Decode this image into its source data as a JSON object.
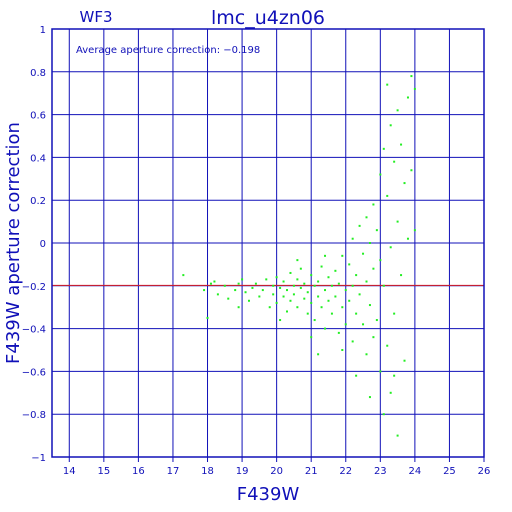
{
  "chart_data": {
    "type": "scatter",
    "panel_label": "WF3",
    "title": "lmc_u4zn06",
    "annotation": "Average aperture correction: −0.198",
    "xlabel": "F439W",
    "ylabel": "F439W aperture correction",
    "xlim": [
      13.5,
      26
    ],
    "ylim": [
      -1,
      1
    ],
    "x_ticks": [
      14,
      15,
      16,
      17,
      18,
      19,
      20,
      21,
      22,
      23,
      24,
      25,
      26
    ],
    "y_ticks": [
      -1,
      -0.8,
      -0.6,
      -0.4,
      -0.2,
      0,
      0.2,
      0.4,
      0.6,
      0.8,
      1
    ],
    "y_tick_labels": [
      "−1",
      "−0.8",
      "−0.6",
      "−0.4",
      "−0.2",
      "0",
      "0.2",
      "0.4",
      "0.6",
      "0.8",
      "1"
    ],
    "grid": true,
    "reference_line": {
      "y": -0.198,
      "color": "#dd2222"
    },
    "colors": {
      "axes": "#1010b8",
      "points": "#22ee22",
      "reference": "#dd2222"
    },
    "series": [
      {
        "points": [
          [
            17.3,
            -0.15
          ],
          [
            17.9,
            -0.22
          ],
          [
            18.0,
            -0.35
          ],
          [
            18.1,
            -0.19
          ],
          [
            18.2,
            -0.18
          ],
          [
            18.3,
            -0.24
          ],
          [
            18.5,
            -0.2
          ],
          [
            18.6,
            -0.26
          ],
          [
            18.8,
            -0.22
          ],
          [
            18.9,
            -0.19
          ],
          [
            18.9,
            -0.3
          ],
          [
            19.0,
            -0.17
          ],
          [
            19.1,
            -0.23
          ],
          [
            19.2,
            -0.27
          ],
          [
            19.3,
            -0.21
          ],
          [
            19.4,
            -0.19
          ],
          [
            19.5,
            -0.25
          ],
          [
            19.6,
            -0.22
          ],
          [
            19.7,
            -0.17
          ],
          [
            19.8,
            -0.3
          ],
          [
            19.9,
            -0.2
          ],
          [
            19.9,
            -0.24
          ],
          [
            20.0,
            -0.16
          ],
          [
            20.0,
            -0.28
          ],
          [
            20.1,
            -0.21
          ],
          [
            20.2,
            -0.25
          ],
          [
            20.2,
            -0.18
          ],
          [
            20.3,
            -0.32
          ],
          [
            20.3,
            -0.22
          ],
          [
            20.4,
            -0.14
          ],
          [
            20.4,
            -0.27
          ],
          [
            20.5,
            -0.2
          ],
          [
            20.5,
            -0.24
          ],
          [
            20.6,
            -0.17
          ],
          [
            20.6,
            -0.3
          ],
          [
            20.7,
            -0.21
          ],
          [
            20.7,
            -0.12
          ],
          [
            20.8,
            -0.26
          ],
          [
            20.8,
            -0.19
          ],
          [
            20.9,
            -0.33
          ],
          [
            20.9,
            -0.23
          ],
          [
            21.0,
            -0.15
          ],
          [
            21.0,
            -0.28
          ],
          [
            21.1,
            -0.2
          ],
          [
            21.1,
            -0.36
          ],
          [
            21.2,
            -0.18
          ],
          [
            21.2,
            -0.25
          ],
          [
            21.3,
            -0.11
          ],
          [
            21.3,
            -0.3
          ],
          [
            21.4,
            -0.22
          ],
          [
            21.4,
            -0.4
          ],
          [
            21.5,
            -0.16
          ],
          [
            21.5,
            -0.27
          ],
          [
            21.6,
            -0.2
          ],
          [
            21.6,
            -0.33
          ],
          [
            21.7,
            -0.13
          ],
          [
            21.7,
            -0.25
          ],
          [
            21.8,
            -0.42
          ],
          [
            21.8,
            -0.19
          ],
          [
            21.9,
            -0.06
          ],
          [
            21.9,
            -0.3
          ],
          [
            22.0,
            -0.22
          ],
          [
            22.0,
            -0.38
          ],
          [
            22.1,
            -0.1
          ],
          [
            22.1,
            -0.27
          ],
          [
            22.2,
            0.02
          ],
          [
            22.2,
            -0.2
          ],
          [
            22.2,
            -0.46
          ],
          [
            22.3,
            -0.15
          ],
          [
            22.3,
            -0.33
          ],
          [
            22.4,
            0.08
          ],
          [
            22.4,
            -0.24
          ],
          [
            22.5,
            -0.05
          ],
          [
            22.5,
            -0.38
          ],
          [
            22.6,
            0.12
          ],
          [
            22.6,
            -0.18
          ],
          [
            22.6,
            -0.52
          ],
          [
            22.7,
            0.0
          ],
          [
            22.7,
            -0.29
          ],
          [
            22.8,
            0.18
          ],
          [
            22.8,
            -0.12
          ],
          [
            22.8,
            -0.44
          ],
          [
            22.9,
            0.06
          ],
          [
            22.9,
            -0.36
          ],
          [
            23.0,
            0.32
          ],
          [
            23.0,
            -0.08
          ],
          [
            23.0,
            -0.6
          ],
          [
            23.1,
            0.44
          ],
          [
            23.1,
            -0.2
          ],
          [
            23.2,
            0.74
          ],
          [
            23.2,
            0.22
          ],
          [
            23.2,
            -0.48
          ],
          [
            23.3,
            0.55
          ],
          [
            23.3,
            -0.02
          ],
          [
            23.3,
            -0.7
          ],
          [
            23.4,
            0.38
          ],
          [
            23.4,
            -0.33
          ],
          [
            23.5,
            0.62
          ],
          [
            23.5,
            0.1
          ],
          [
            23.5,
            -0.9
          ],
          [
            23.6,
            0.46
          ],
          [
            23.6,
            -0.15
          ],
          [
            23.7,
            0.28
          ],
          [
            23.7,
            -0.55
          ],
          [
            23.8,
            0.68
          ],
          [
            23.8,
            0.02
          ],
          [
            23.9,
            0.78
          ],
          [
            23.9,
            0.34
          ],
          [
            24.0,
            0.72
          ],
          [
            24.0,
            0.06
          ],
          [
            20.1,
            -0.36
          ],
          [
            20.6,
            -0.08
          ],
          [
            21.0,
            -0.44
          ],
          [
            21.4,
            -0.06
          ],
          [
            21.9,
            -0.5
          ],
          [
            22.3,
            -0.62
          ],
          [
            22.7,
            -0.72
          ],
          [
            23.1,
            -0.8
          ],
          [
            21.2,
            -0.52
          ],
          [
            23.4,
            -0.62
          ]
        ]
      }
    ]
  }
}
